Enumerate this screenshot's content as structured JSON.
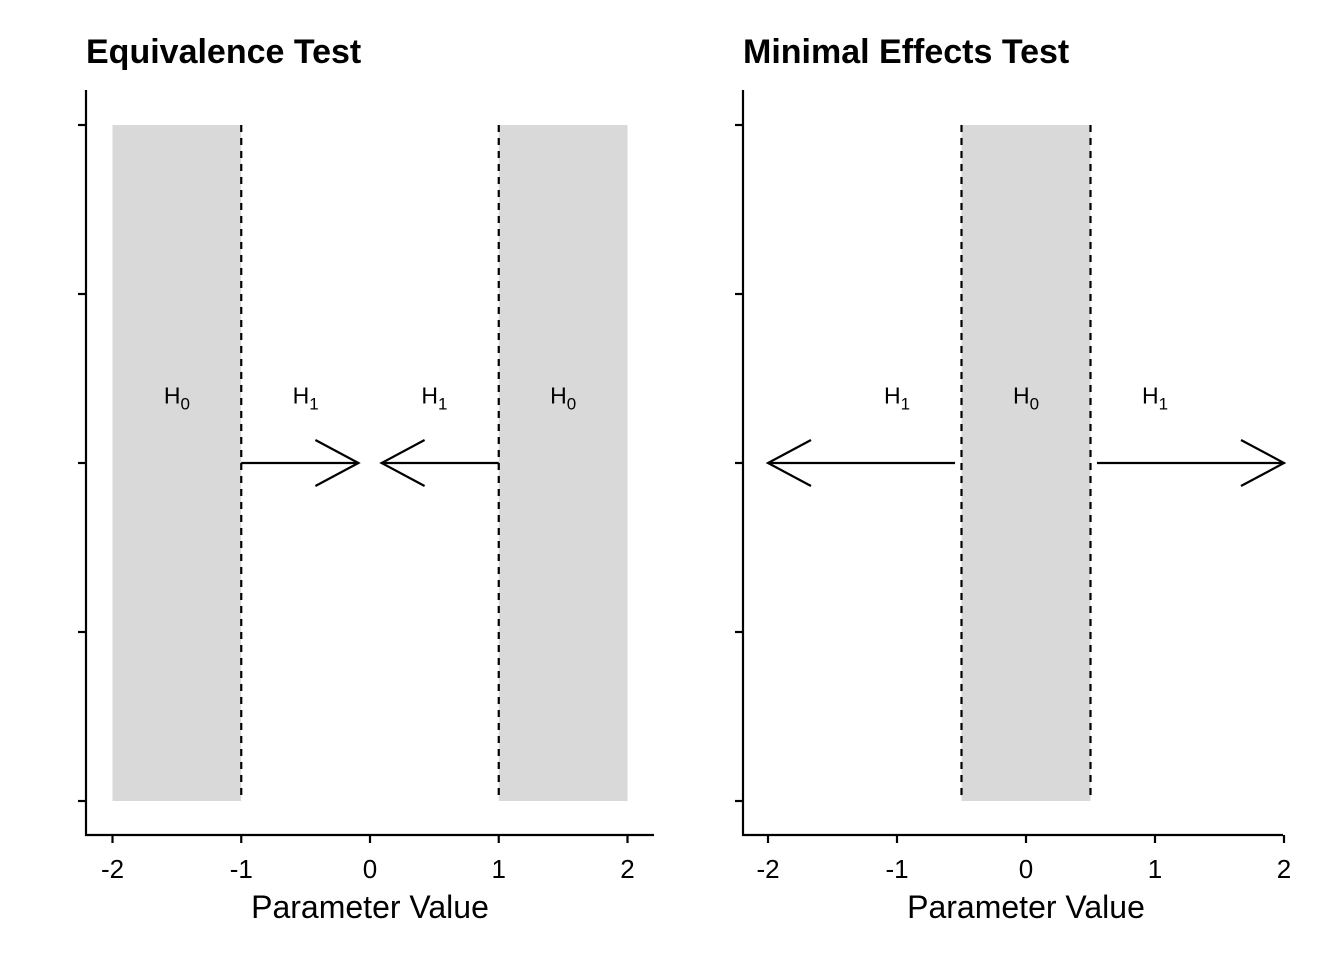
{
  "chart_data": [
    {
      "type": "area",
      "title": "Equivalence Test",
      "xlabel": "Parameter Value",
      "ylabel": "",
      "xlim": [
        -2.2,
        2.2
      ],
      "ylim": [
        -0.05,
        1.05
      ],
      "xticks": [
        "-2",
        "-1",
        "0",
        "1",
        "2"
      ],
      "xtick_values": [
        -2,
        -1,
        0,
        1,
        2
      ],
      "ytick_values": [
        0,
        0.25,
        0.5,
        0.75,
        1
      ],
      "ytick_labels_shown": false,
      "grid": false,
      "shaded_regions": [
        {
          "xmin": -2,
          "xmax": -1,
          "ymin": 0,
          "ymax": 1,
          "color": "#d9d9d9"
        },
        {
          "xmin": 1,
          "xmax": 2,
          "ymin": 0,
          "ymax": 1,
          "color": "#d9d9d9"
        }
      ],
      "dashed_lines": [
        -1,
        1
      ],
      "arrows": [
        {
          "from": -1,
          "to": -0.09,
          "y": 0.5
        },
        {
          "from": 1,
          "to": 0.09,
          "y": 0.5
        }
      ],
      "labels": [
        {
          "text": "H",
          "sub": "0",
          "x": -1.5,
          "y": 0.6
        },
        {
          "text": "H",
          "sub": "1",
          "x": -0.5,
          "y": 0.6
        },
        {
          "text": "H",
          "sub": "1",
          "x": 0.5,
          "y": 0.6
        },
        {
          "text": "H",
          "sub": "0",
          "x": 1.5,
          "y": 0.6
        }
      ]
    },
    {
      "type": "area",
      "title": "Minimal Effects Test",
      "xlabel": "Parameter Value",
      "ylabel": "",
      "xlim": [
        -2.2,
        2.2
      ],
      "ylim": [
        -0.05,
        1.05
      ],
      "xticks": [
        "-2",
        "-1",
        "0",
        "1",
        "2"
      ],
      "xtick_values": [
        -2,
        -1,
        0,
        1,
        2
      ],
      "ytick_values": [
        0,
        0.25,
        0.5,
        0.75,
        1
      ],
      "ytick_labels_shown": false,
      "grid": false,
      "shaded_regions": [
        {
          "xmin": -0.5,
          "xmax": 0.5,
          "ymin": 0,
          "ymax": 1,
          "color": "#d9d9d9"
        }
      ],
      "dashed_lines": [
        -0.5,
        0.5
      ],
      "arrows": [
        {
          "from": -0.55,
          "to": -2,
          "y": 0.5
        },
        {
          "from": 0.55,
          "to": 2,
          "y": 0.5
        }
      ],
      "labels": [
        {
          "text": "H",
          "sub": "1",
          "x": -1,
          "y": 0.6
        },
        {
          "text": "H",
          "sub": "0",
          "x": 0,
          "y": 0.6
        },
        {
          "text": "H",
          "sub": "1",
          "x": 1,
          "y": 0.6
        }
      ]
    }
  ]
}
